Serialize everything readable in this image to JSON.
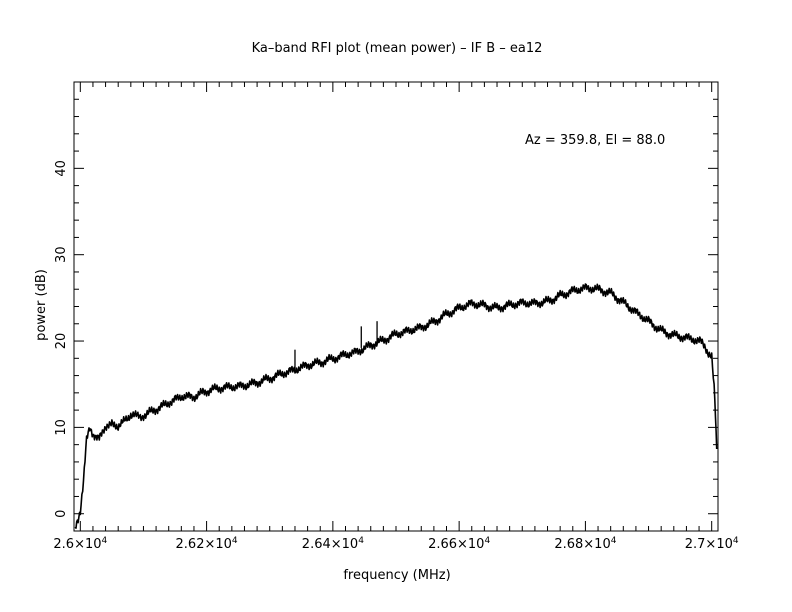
{
  "chart_data": {
    "type": "line",
    "title": "Ka–band RFI plot (mean power) – IF B – ea12",
    "xlabel": "frequency (MHz)",
    "ylabel": "power (dB)",
    "annotation": "Az = 359.8, El = 88.0",
    "xlim": [
      25990,
      27010
    ],
    "ylim": [
      -2,
      50
    ],
    "grid": false,
    "legend": "none",
    "x_ticks": [
      {
        "value": 26000,
        "label": "2.6×10",
        "exp": "4"
      },
      {
        "value": 26200,
        "label": "2.62×10",
        "exp": "4"
      },
      {
        "value": 26400,
        "label": "2.64×10",
        "exp": "4"
      },
      {
        "value": 26600,
        "label": "2.66×10",
        "exp": "4"
      },
      {
        "value": 26800,
        "label": "2.68×10",
        "exp": "4"
      },
      {
        "value": 27000,
        "label": "2.7×10",
        "exp": "4"
      }
    ],
    "y_ticks": [
      {
        "value": 0,
        "label": "0"
      },
      {
        "value": 10,
        "label": "10"
      },
      {
        "value": 20,
        "label": "20"
      },
      {
        "value": 30,
        "label": "30"
      },
      {
        "value": 40,
        "label": "40"
      }
    ],
    "series": [
      {
        "x": [
          25992,
          26000,
          26005,
          26010,
          26015,
          26020,
          26030,
          26040,
          26050,
          26060,
          26070,
          26080,
          26090,
          26100,
          26120,
          26140,
          26160,
          26180,
          26200,
          26220,
          26240,
          26260,
          26280,
          26300,
          26320,
          26340,
          26360,
          26380,
          26400,
          26420,
          26440,
          26460,
          26480,
          26500,
          26520,
          26540,
          26560,
          26580,
          26600,
          26620,
          26640,
          26660,
          26680,
          26700,
          26720,
          26740,
          26760,
          26780,
          26800,
          26820,
          26840,
          26860,
          26880,
          26900,
          26920,
          26940,
          26960,
          26980,
          26990,
          27000,
          27005,
          27008
        ],
        "y": [
          -1.5,
          0.5,
          4.0,
          8.5,
          9.8,
          9.2,
          8.8,
          10.0,
          10.5,
          10.0,
          10.8,
          11.5,
          11.2,
          11.5,
          12.3,
          13.0,
          13.6,
          13.4,
          14.0,
          14.4,
          14.7,
          15.0,
          15.4,
          15.8,
          16.2,
          16.5,
          17.0,
          17.4,
          18.0,
          18.6,
          19.0,
          19.6,
          20.0,
          20.6,
          21.0,
          21.5,
          22.3,
          23.3,
          24.0,
          24.4,
          24.0,
          23.6,
          24.0,
          24.4,
          24.5,
          24.8,
          25.4,
          25.8,
          26.0,
          25.8,
          25.4,
          24.5,
          23.5,
          22.5,
          21.3,
          20.6,
          20.2,
          19.8,
          19.5,
          18.0,
          13.0,
          7.5
        ]
      }
    ],
    "spikes": [
      {
        "x": 26340,
        "base": 16.8,
        "top": 19.0
      },
      {
        "x": 26445,
        "base": 19.2,
        "top": 21.7
      },
      {
        "x": 26470,
        "base": 19.8,
        "top": 22.3
      }
    ]
  }
}
